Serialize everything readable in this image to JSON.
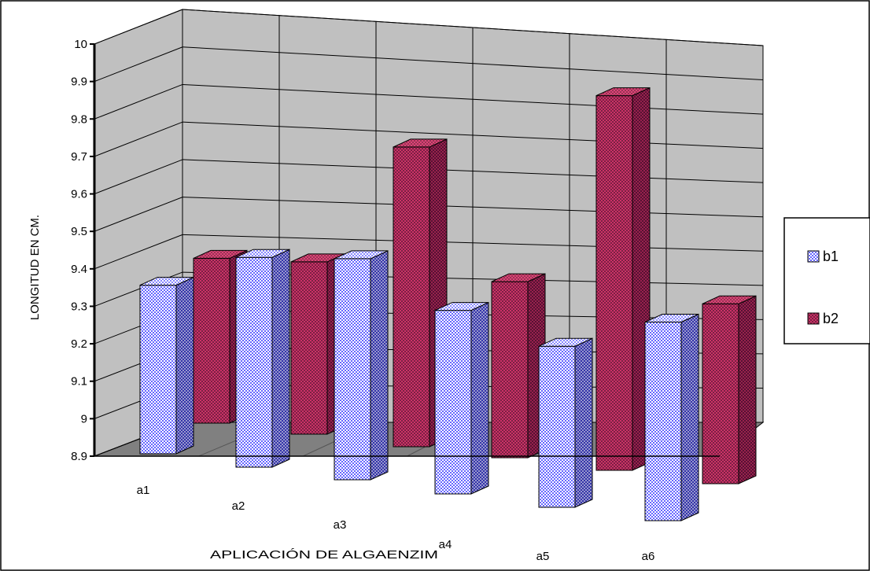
{
  "chart_data": {
    "type": "bar",
    "title": "",
    "xlabel": "APLICACIÓN DE ALGAENZIM",
    "ylabel": "LONGITUD EN CM.",
    "categories": [
      "a1",
      "a2",
      "a3",
      "a4",
      "a5",
      "a6"
    ],
    "series": [
      {
        "name": "b1",
        "values": [
          9.35,
          9.46,
          9.49,
          9.39,
          9.33,
          9.43
        ]
      },
      {
        "name": "b2",
        "values": [
          9.34,
          9.36,
          9.7,
          9.37,
          9.9,
          9.38
        ]
      }
    ],
    "ylim": [
      8.9,
      10
    ],
    "yticks": [
      "8.9",
      "9",
      "9.1",
      "9.2",
      "9.3",
      "9.4",
      "9.5",
      "9.6",
      "9.7",
      "9.8",
      "9.9",
      "10"
    ],
    "grid": true,
    "legend_position": "right",
    "colors": {
      "b1": "#9999ff",
      "b2": "#993366",
      "wall": "#c0c0c0",
      "floor": "#808080"
    }
  }
}
